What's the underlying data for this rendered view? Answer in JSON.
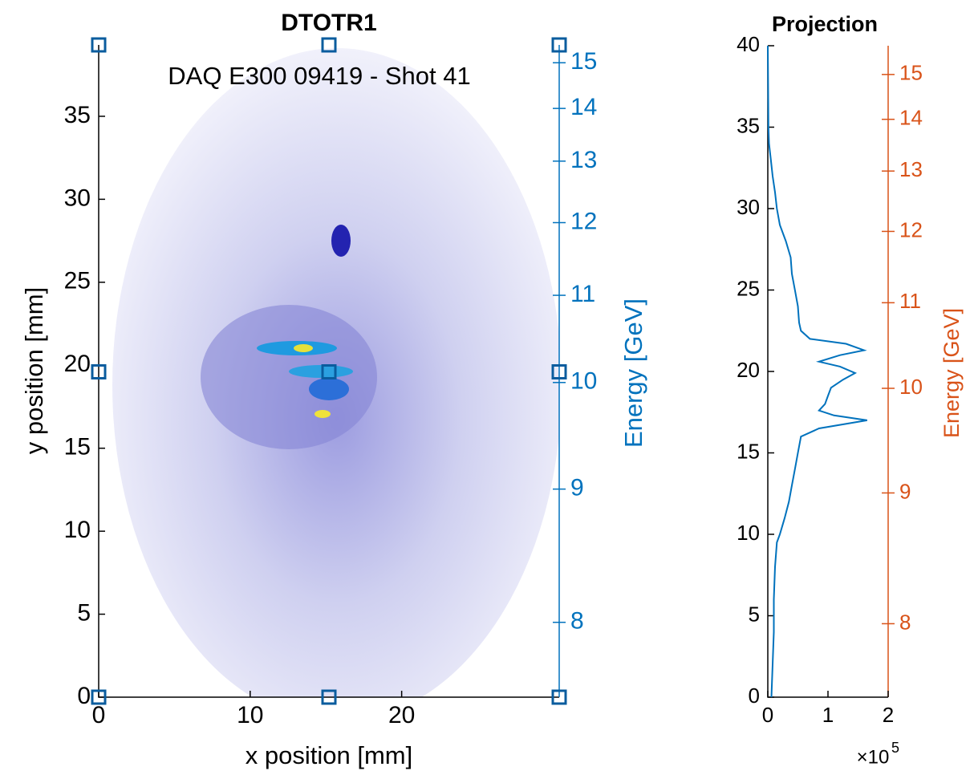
{
  "chart_data": [
    {
      "type": "image",
      "title": "DTOTR1",
      "annotation": "DAQ E300 09419 - Shot 41",
      "x_label": "x position [mm]",
      "y_label": "y position [mm]",
      "y2_label": "Energy [GeV]",
      "xlim": [
        0,
        30.4
      ],
      "ylim": [
        0,
        39.3
      ],
      "xticks": [
        0,
        10,
        20
      ],
      "yticks": [
        0,
        5,
        10,
        15,
        20,
        25,
        30,
        35
      ],
      "y2lim": [
        7.53,
        15.43
      ],
      "y2_scale": "reciprocal",
      "y2ticks": [
        8,
        9,
        10,
        11,
        12,
        13,
        14,
        15
      ],
      "y2_color": "#0072bd"
    },
    {
      "type": "line",
      "title": "Projection",
      "y2_label": "Energy [GeV]",
      "x_multiplier": "×10",
      "x_multiplier_exponent": "5",
      "xlim": [
        0,
        200000
      ],
      "xticks": [
        0,
        {
          "value": 100000,
          "label": "1"
        },
        {
          "value": 200000,
          "label": "2"
        }
      ],
      "ylim": [
        0,
        40
      ],
      "yticks": [
        0,
        5,
        10,
        15,
        20,
        25,
        30,
        35,
        40
      ],
      "y2lim": [
        7.53,
        15.72
      ],
      "y2_scale": "reciprocal",
      "y2ticks": [
        8,
        9,
        10,
        11,
        12,
        13,
        14,
        15
      ],
      "y2_color": "#d95319",
      "color": "#0072bd",
      "y": [
        0,
        2,
        4,
        6,
        8,
        9.5,
        10,
        11,
        12,
        13,
        14,
        15,
        16,
        16.5,
        17,
        17.3,
        17.6,
        18,
        18.5,
        19,
        19.5,
        19.9,
        20.3,
        20.6,
        21,
        21.3,
        21.7,
        22,
        22.5,
        23,
        24,
        25,
        26,
        27,
        28,
        29,
        30,
        31,
        32,
        33,
        34,
        35,
        40
      ],
      "values": [
        6000,
        8000,
        10000,
        10000,
        12000,
        15000,
        20000,
        28000,
        35000,
        40000,
        45000,
        50000,
        55000,
        85000,
        165000,
        110000,
        85000,
        95000,
        100000,
        105000,
        125000,
        145000,
        120000,
        85000,
        120000,
        160000,
        130000,
        70000,
        55000,
        52000,
        50000,
        45000,
        40000,
        38000,
        30000,
        20000,
        15000,
        12000,
        8000,
        5000,
        2000,
        1000,
        0
      ]
    }
  ]
}
